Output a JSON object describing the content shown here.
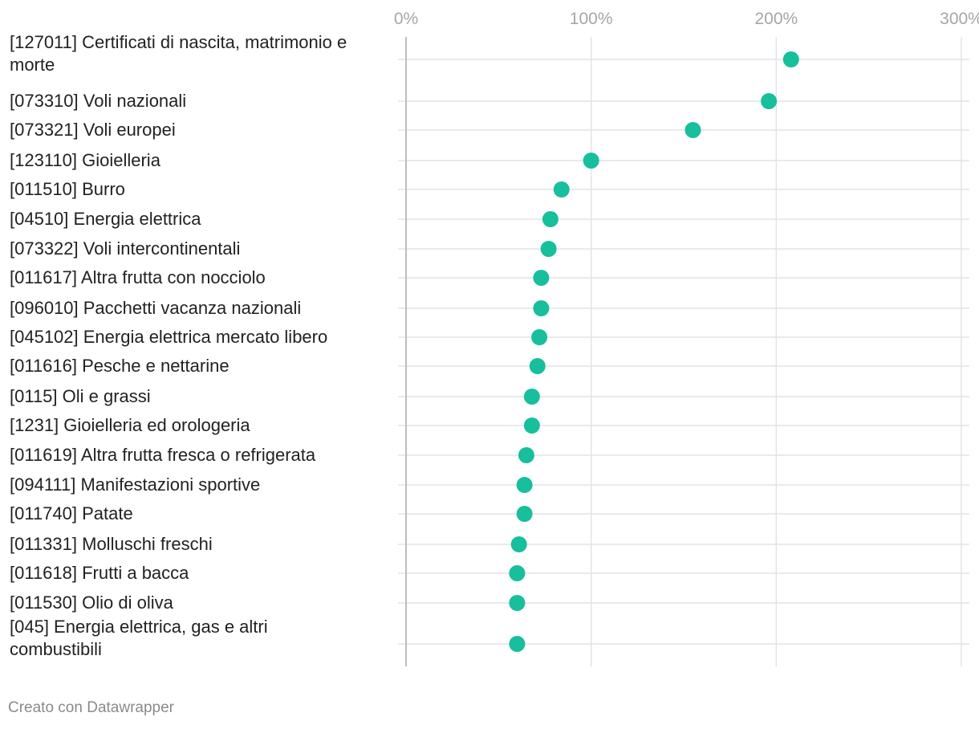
{
  "chart_data": {
    "type": "scatter",
    "title": "",
    "xlabel": "",
    "ylabel": "",
    "x_ticks": [
      "0%",
      "100%",
      "200%",
      "300%"
    ],
    "xlim": [
      0,
      300
    ],
    "x_tick_values": [
      0,
      100,
      200,
      300
    ],
    "grid": true,
    "marker_color": "#17bf9c",
    "categories": [
      "[127011] Certificati di nascita, matrimonio e morte",
      "[073310] Voli nazionali",
      "[073321] Voli europei",
      "[123110] Gioielleria",
      "[011510] Burro",
      "[04510] Energia elettrica",
      "[073322] Voli intercontinentali",
      "[011617] Altra frutta con nocciolo",
      "[096010] Pacchetti vacanza nazionali",
      "[045102] Energia elettrica mercato libero",
      "[011616] Pesche e nettarine",
      "[0115] Oli e grassi",
      "[1231] Gioielleria ed orologeria",
      "[011619] Altra frutta fresca o refrigerata",
      "[094111] Manifestazioni sportive",
      "[011740] Patate",
      "[011331] Molluschi freschi",
      "[011618] Frutti a bacca",
      "[011530] Olio di oliva",
      "[045] Energia elettrica, gas e altri combustibili"
    ],
    "category_lines": [
      [
        "[127011] Certificati di nascita, matrimonio e",
        "morte"
      ],
      [
        "[073310] Voli nazionali"
      ],
      [
        "[073321] Voli europei"
      ],
      [
        "[123110] Gioielleria"
      ],
      [
        "[011510] Burro"
      ],
      [
        "[04510] Energia elettrica"
      ],
      [
        "[073322] Voli intercontinentali"
      ],
      [
        "[011617] Altra frutta con nocciolo"
      ],
      [
        "[096010] Pacchetti vacanza nazionali"
      ],
      [
        "[045102] Energia elettrica mercato libero"
      ],
      [
        "[011616] Pesche e nettarine"
      ],
      [
        "[0115] Oli e grassi"
      ],
      [
        "[1231] Gioielleria ed orologeria"
      ],
      [
        "[011619] Altra frutta fresca o refrigerata"
      ],
      [
        "[094111] Manifestazioni sportive"
      ],
      [
        "[011740] Patate"
      ],
      [
        "[011331] Molluschi freschi"
      ],
      [
        "[011618] Frutti a bacca"
      ],
      [
        "[011530] Olio di oliva"
      ],
      [
        "[045] Energia elettrica, gas e altri",
        "combustibili"
      ]
    ],
    "values": [
      208,
      196,
      155,
      100,
      84,
      78,
      77,
      73,
      73,
      72,
      71,
      68,
      68,
      65,
      64,
      64,
      61,
      60,
      60,
      60
    ]
  },
  "footer": {
    "credit": "Creato con Datawrapper"
  }
}
